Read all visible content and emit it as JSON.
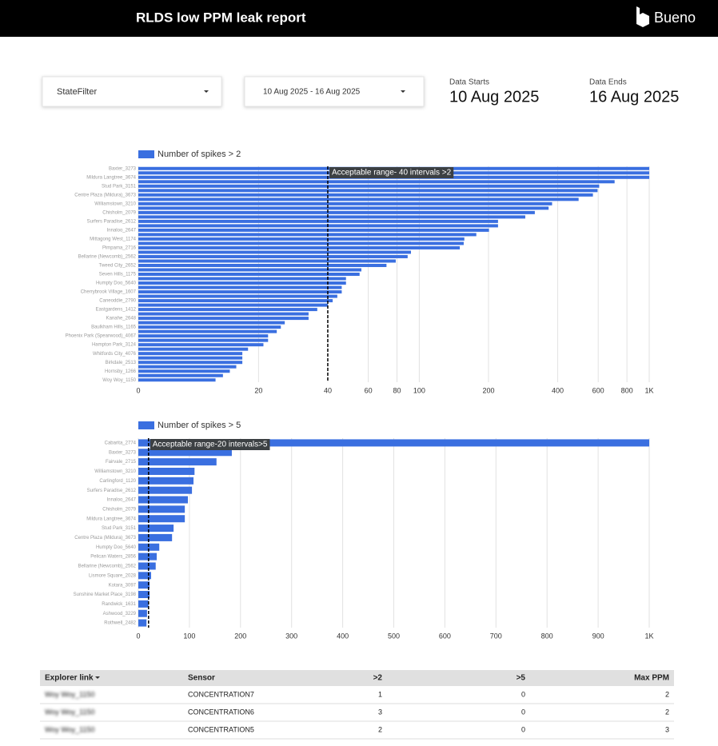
{
  "header": {
    "title": "RLDS low PPM leak report",
    "brand": "Bueno"
  },
  "controls": {
    "state_filter": "StateFilter",
    "date_range": "10 Aug 2025 - 16 Aug 2025",
    "data_starts_label": "Data Starts",
    "data_starts": "10 Aug 2025",
    "data_ends_label": "Data Ends",
    "data_ends": "16 Aug 2025"
  },
  "chart_data": [
    {
      "type": "hbar",
      "log": true,
      "color": "#3a6fe0",
      "grid": true,
      "series": [
        {
          "name": "Number of spikes > 2",
          "color": "#3a6fe0",
          "values": [
            1000,
            1000,
            1000,
            707,
            606,
            596,
            569,
            493,
            378,
            365,
            318,
            289,
            220,
            220,
            201,
            177,
            157,
            156,
            150,
            92,
            89,
            79,
            72,
            56,
            55,
            48,
            48,
            46,
            46,
            44,
            42,
            40,
            36,
            33,
            33,
            26,
            25,
            24,
            22,
            22,
            21,
            18,
            17,
            17,
            17,
            16,
            15,
            14,
            13
          ]
        }
      ],
      "categories": [
        "Baxter_3273",
        null,
        "Mildura Langtree_3674",
        null,
        "Stud Park_3151",
        null,
        "Centre Plaza (Mildura)_3673",
        null,
        "Williamstown_3210",
        null,
        "Chisholm_2079",
        null,
        "Surfers Paradise_2612",
        null,
        "Innaloo_2647",
        null,
        "Mittagong West_1174",
        null,
        "Pimpama_2716",
        null,
        "Bellarine (Newcomb)_2562",
        null,
        "Tweed City_2652",
        null,
        "Seven Hills_1175",
        null,
        "Humpty Doo_5640",
        null,
        "Cherrybrook Village_1607",
        null,
        "Caneoddie_2790",
        null,
        "Eastgardens_1412",
        null,
        "Kanahe_2648",
        null,
        "Baulkham Hills_1165",
        null,
        "Phoenix Park (Spearwood)_4067",
        null,
        "Hampton Park_3124",
        null,
        "Whitfords City_4076",
        null,
        "Birkdale_2513",
        null,
        "Hornsby_1266",
        null,
        "Woy Woy_1150"
      ],
      "xlim": [
        6,
        1000
      ],
      "xticks": [
        0,
        20,
        40,
        60,
        80,
        100,
        200,
        400,
        600,
        800,
        {
          "value": 1000,
          "label": "1K"
        }
      ],
      "reference": {
        "value": 40,
        "label": "Acceptable range- 40 intervals >2"
      }
    },
    {
      "type": "hbar",
      "log": false,
      "color": "#3a6fe0",
      "grid": true,
      "series": [
        {
          "name": "Number of spikes > 5",
          "color": "#3a6fe0",
          "values": [
            1000,
            183,
            153,
            110,
            108,
            105,
            97,
            91,
            91,
            69,
            66,
            41,
            36,
            34,
            25,
            22,
            22,
            20,
            17,
            16
          ]
        }
      ],
      "categories": [
        "Cabarita_2774",
        "Baxter_3273",
        "Fairvale_2715",
        "Williamstown_3210",
        "Carlingford_1120",
        "Surfers Paradise_2612",
        "Innaloo_2647",
        "Chisholm_2079",
        "Mildura Langtree_3674",
        "Stud Park_3151",
        "Centre Plaza (Mildura)_3673",
        "Humpty Doo_5640",
        "Pelican Waters_2856",
        "Bellarine (Newcomb)_2562",
        "Lismore Square_2028",
        "Kotara_3097",
        "Sunshine Market Place_3198",
        "Randwick_1631",
        "Ashwood_3229",
        "Rothwell_2482"
      ],
      "xlim": [
        0,
        1000
      ],
      "xticks": [
        0,
        100,
        200,
        300,
        400,
        500,
        600,
        700,
        800,
        900,
        {
          "value": 1000,
          "label": "1K"
        }
      ],
      "reference": {
        "value": 20,
        "label": "Acceptable range-20 intervals>5"
      }
    }
  ],
  "table": {
    "columns": [
      "Explorer link",
      "Sensor",
      ">2",
      ">5",
      "Max PPM"
    ],
    "rows": [
      [
        "Woy Woy_1150",
        "CONCENTRATION7",
        1,
        0,
        2
      ],
      [
        "Woy Woy_1150",
        "CONCENTRATION6",
        3,
        0,
        2
      ],
      [
        "Woy Woy_1150",
        "CONCENTRATION5",
        2,
        0,
        3
      ]
    ]
  }
}
